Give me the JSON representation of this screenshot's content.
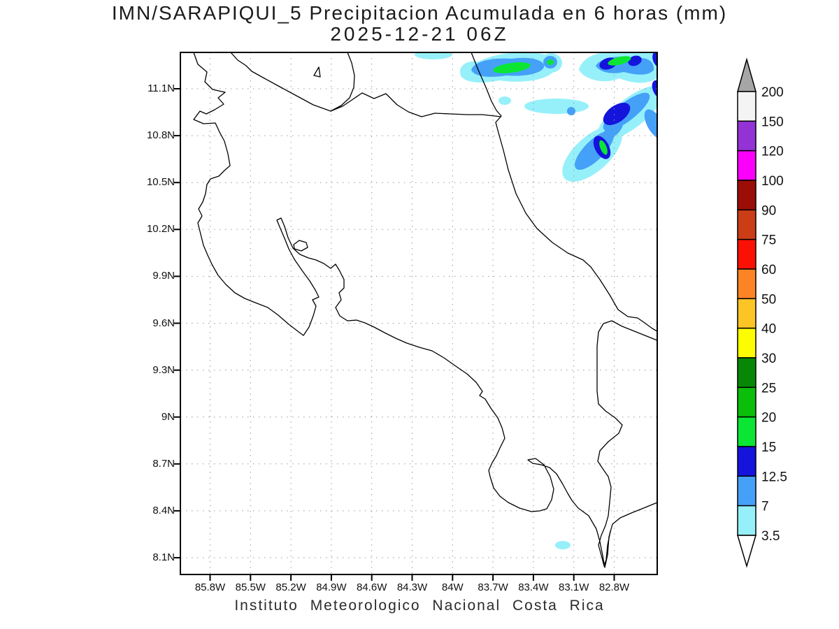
{
  "title": {
    "line1": "IMN/SARAPIQUI_5 Precipitacion Acumulada en 6 horas (mm)",
    "line2": "2025-12-21 06Z"
  },
  "footer": "Instituto Meteorologico Nacional Costa Rica",
  "axes": {
    "lat_labels": [
      "11.1N",
      "10.8N",
      "10.5N",
      "10.2N",
      "9.9N",
      "9.6N",
      "9.3N",
      "9N",
      "8.7N",
      "8.4N",
      "8.1N"
    ],
    "lon_labels": [
      "85.8W",
      "85.5W",
      "85.2W",
      "84.9W",
      "84.6W",
      "84.3W",
      "84W",
      "83.7W",
      "83.4W",
      "83.1W",
      "82.8W"
    ]
  },
  "colorbar": {
    "unit": "mm",
    "labels_top_to_bottom": [
      "200",
      "150",
      "120",
      "100",
      "90",
      "75",
      "60",
      "50",
      "40",
      "30",
      "25",
      "20",
      "15",
      "12.5",
      "7",
      "3.5"
    ],
    "box_colors_top_to_bottom": [
      "#f4f4f4",
      "#9333d6",
      "#fb00fb",
      "#9d0d07",
      "#cb3d16",
      "#fb1004",
      "#fd8425",
      "#fdc426",
      "#fdfd02",
      "#068806",
      "#0abe0a",
      "#0be634",
      "#1414dd",
      "#45a0f8",
      "#96f0fa"
    ],
    "above_arrow_color": "#a6a6a6",
    "below_arrow_color": "#ffffff"
  },
  "chart_data": {
    "type": "heatmap",
    "subtype": "filled-contour-precipitation-map",
    "title": "IMN/SARAPIQUI_5 Precipitacion Acumulada en 6 horas (mm)",
    "valid_time": "2025-12-21 06Z",
    "units": "mm",
    "region": "Costa Rica",
    "lat_ticks": [
      "11.1N",
      "10.8N",
      "10.5N",
      "10.2N",
      "9.9N",
      "9.6N",
      "9.3N",
      "9N",
      "8.7N",
      "8.4N",
      "8.1N"
    ],
    "lon_ticks": [
      "85.8W",
      "85.5W",
      "85.2W",
      "84.9W",
      "84.6W",
      "84.3W",
      "84W",
      "83.7W",
      "83.4W",
      "83.1W",
      "82.8W"
    ],
    "contour_levels": [
      3.5,
      7,
      12.5,
      15,
      20,
      25,
      30,
      40,
      50,
      60,
      75,
      90,
      100,
      120,
      150,
      200
    ],
    "grid": "dotted 0.3 degree graticule",
    "legend_position": "right vertical color bar with open arrow ends",
    "observed_features": [
      {
        "area": "Caribbean Sea NE of Costa Rica, 84W-82.8W / 10.2N-11.3N",
        "bands": "SW-NE oriented rain bands",
        "max_category": "15-20 mm (green cores inside 12.5-15 blue and 7-12.5 light blue and 3.5-7 cyan shading)"
      },
      {
        "area": "near 83.3W 8.25N offshore Pacific SE",
        "bands": "small isolated patch",
        "max_category": "3.5-7 mm"
      },
      {
        "area": "Costa Rica landmass",
        "bands": "none",
        "max_category": "< 3.5 mm"
      }
    ]
  }
}
